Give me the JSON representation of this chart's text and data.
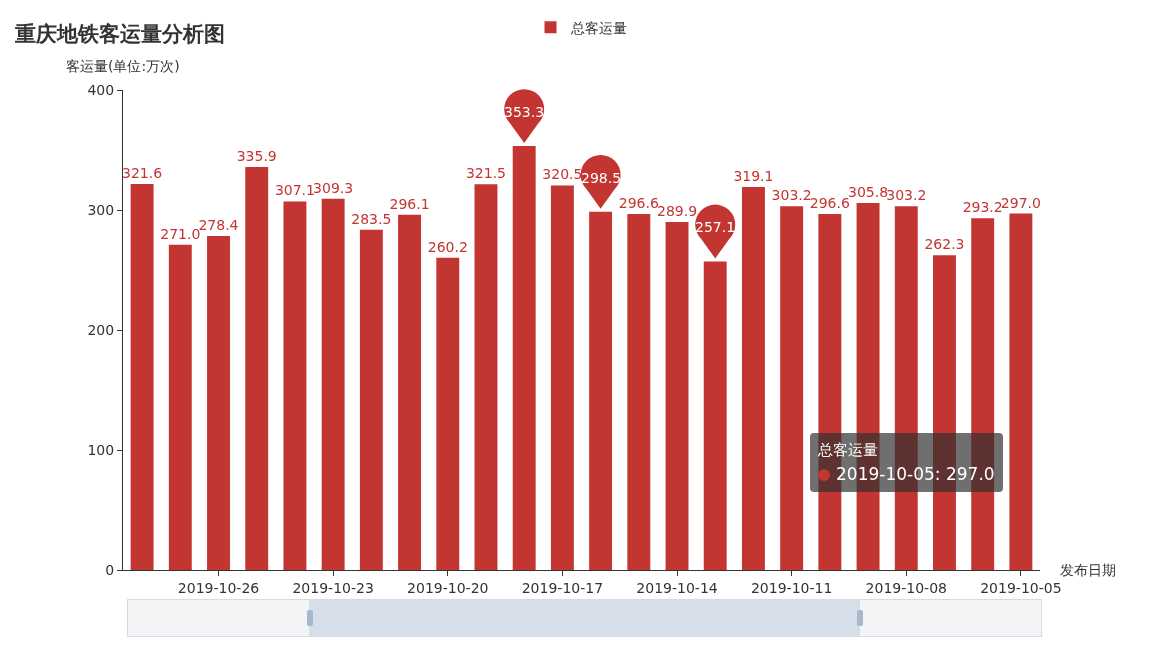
{
  "chart_data": {
    "type": "bar",
    "title": "重庆地铁客运量分析图",
    "ylabel": "客运量(单位:万次)",
    "xlabel": "发布日期",
    "categories": [
      null,
      null,
      "2019-10-26",
      null,
      null,
      "2019-10-23",
      null,
      null,
      "2019-10-20",
      null,
      null,
      "2019-10-17",
      null,
      null,
      "2019-10-14",
      null,
      null,
      "2019-10-11",
      null,
      null,
      "2019-10-08",
      null,
      null,
      "2019-10-05"
    ],
    "series": [
      {
        "name": "总客运量",
        "color": "#c23531",
        "values": [
          321.6,
          271.0,
          278.4,
          335.9,
          307.1,
          309.3,
          283.5,
          296.1,
          260.2,
          321.5,
          353.3,
          320.5,
          298.5,
          296.6,
          289.9,
          257.1,
          319.1,
          303.2,
          296.6,
          305.8,
          303.2,
          262.3,
          293.2,
          297.0
        ],
        "value_labels": [
          "321.6",
          "271.0",
          "278.4",
          "335.9",
          "307.1",
          "309.3",
          "283.5",
          "296.1",
          "260.2",
          "321.5",
          null,
          "320.5",
          null,
          "296.6",
          "289.9",
          null,
          "319.1",
          "303.2",
          "296.6",
          "305.8",
          "303.2",
          "262.3",
          "293.2",
          "297.0"
        ]
      }
    ],
    "ylim": [
      0,
      400
    ],
    "yticks": [
      0,
      100,
      200,
      300,
      400
    ],
    "legend": "top",
    "annotations": [
      {
        "text": "353.3",
        "y": 353.3
      },
      {
        "text": "298.5",
        "y": 298.5
      },
      {
        "text": "257.1",
        "y": 257.1
      },
      "总客运量",
      "2019-10-05: 297.0"
    ]
  }
}
